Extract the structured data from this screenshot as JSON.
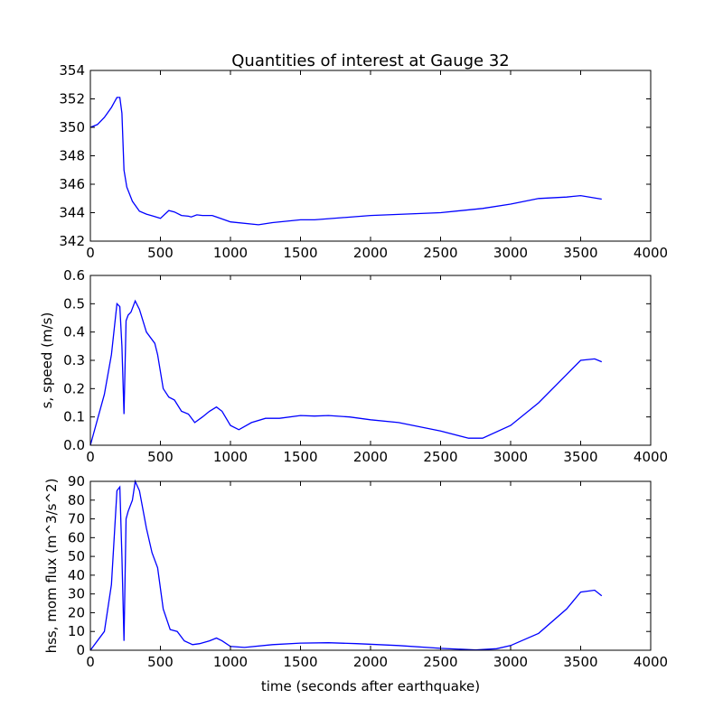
{
  "title": "Quantities of interest at Gauge 32",
  "xlabel": "time (seconds after earthquake)",
  "chart_data": [
    {
      "type": "line",
      "ylabel": "",
      "xlim": [
        0,
        4000
      ],
      "ylim": [
        342,
        354
      ],
      "xticks": [
        0,
        500,
        1000,
        1500,
        2000,
        2500,
        3000,
        3500,
        4000
      ],
      "yticks": [
        342,
        344,
        346,
        348,
        350,
        352,
        354
      ],
      "color": "#0000ff",
      "x": [
        0,
        50,
        100,
        150,
        190,
        210,
        225,
        240,
        260,
        300,
        350,
        400,
        450,
        500,
        560,
        600,
        650,
        700,
        720,
        760,
        800,
        870,
        900,
        1000,
        1200,
        1300,
        1500,
        1600,
        2000,
        2500,
        2800,
        3000,
        3200,
        3400,
        3500,
        3650
      ],
      "y": [
        350,
        350.2,
        350.7,
        351.4,
        352.1,
        352.1,
        351,
        347,
        345.8,
        344.8,
        344.1,
        343.9,
        343.75,
        343.6,
        344.15,
        344.05,
        343.8,
        343.75,
        343.7,
        343.85,
        343.8,
        343.8,
        343.7,
        343.35,
        343.15,
        343.3,
        343.5,
        343.5,
        343.8,
        344.0,
        344.3,
        344.6,
        345.0,
        345.1,
        345.2,
        344.95
      ]
    },
    {
      "type": "line",
      "ylabel": "s, speed (m/s)",
      "xlim": [
        0,
        4000
      ],
      "ylim": [
        0,
        0.6
      ],
      "xticks": [
        0,
        500,
        1000,
        1500,
        2000,
        2500,
        3000,
        3500,
        4000
      ],
      "yticks": [
        0.0,
        0.1,
        0.2,
        0.3,
        0.4,
        0.5,
        0.6
      ],
      "ytick_labels": [
        "0.0",
        "0.1",
        "0.2",
        "0.3",
        "0.4",
        "0.5",
        "0.6"
      ],
      "color": "#0000ff",
      "x": [
        0,
        100,
        150,
        190,
        210,
        225,
        240,
        255,
        270,
        290,
        320,
        350,
        400,
        460,
        480,
        520,
        560,
        600,
        650,
        700,
        745,
        800,
        850,
        900,
        940,
        1000,
        1060,
        1150,
        1250,
        1350,
        1500,
        1600,
        1700,
        1850,
        2000,
        2200,
        2500,
        2700,
        2800,
        3000,
        3200,
        3400,
        3500,
        3600,
        3650
      ],
      "y": [
        0,
        0.18,
        0.32,
        0.5,
        0.49,
        0.35,
        0.11,
        0.44,
        0.46,
        0.47,
        0.51,
        0.48,
        0.4,
        0.36,
        0.32,
        0.2,
        0.17,
        0.16,
        0.12,
        0.11,
        0.08,
        0.1,
        0.12,
        0.135,
        0.12,
        0.07,
        0.055,
        0.08,
        0.095,
        0.095,
        0.105,
        0.103,
        0.105,
        0.1,
        0.09,
        0.08,
        0.05,
        0.025,
        0.025,
        0.07,
        0.15,
        0.25,
        0.3,
        0.305,
        0.295
      ]
    },
    {
      "type": "line",
      "ylabel": "hss, mom flux (m^3/s^2)",
      "xlim": [
        0,
        4000
      ],
      "ylim": [
        0,
        90
      ],
      "xticks": [
        0,
        500,
        1000,
        1500,
        2000,
        2500,
        3000,
        3500,
        4000
      ],
      "yticks": [
        0,
        10,
        20,
        30,
        40,
        50,
        60,
        70,
        80,
        90
      ],
      "color": "#0000ff",
      "x": [
        0,
        100,
        150,
        190,
        210,
        225,
        240,
        255,
        270,
        300,
        320,
        350,
        400,
        440,
        480,
        520,
        570,
        620,
        670,
        730,
        780,
        850,
        900,
        940,
        1000,
        1100,
        1300,
        1500,
        1700,
        1900,
        2200,
        2500,
        2750,
        2900,
        3000,
        3200,
        3400,
        3500,
        3600,
        3650
      ],
      "y": [
        0,
        10,
        35,
        85,
        87,
        50,
        5,
        70,
        74,
        80,
        90,
        85,
        65,
        52,
        44,
        22,
        11,
        10,
        5,
        3,
        3.5,
        5,
        6.5,
        5,
        2,
        1.5,
        3,
        3.8,
        4,
        3.5,
        2.5,
        1,
        0.2,
        0.8,
        2.5,
        9,
        22,
        31,
        32,
        29
      ]
    }
  ]
}
